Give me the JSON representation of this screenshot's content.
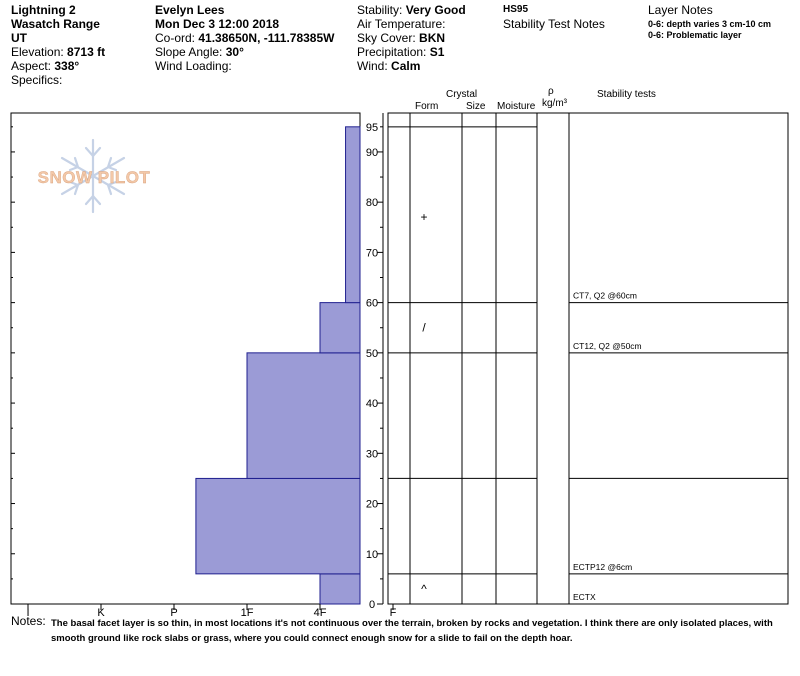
{
  "site": {
    "name": "Lightning 2",
    "range": "Wasatch Range",
    "state": "UT",
    "elevation_label": "Elevation:",
    "elevation": "8713 ft",
    "aspect_label": "Aspect:",
    "aspect": "338°",
    "specifics_label": "Specifics:"
  },
  "observer": {
    "name": "Evelyn Lees",
    "datetime": "Mon Dec 3 12:00 2018",
    "coord_label": "Co-ord:",
    "coord": "41.38650N, -111.78385W",
    "slope_label": "Slope Angle:",
    "slope": "30°",
    "wind_loading_label": "Wind Loading:"
  },
  "conditions": {
    "stability_label": "Stability:",
    "stability": "Very Good",
    "air_temp_label": "Air Temperature:",
    "sky_label": "Sky Cover:",
    "sky": "BKN",
    "precip_label": "Precipitation:",
    "precip": "S1",
    "wind_label": "Wind:",
    "wind": "Calm"
  },
  "hs": {
    "code": "HS95",
    "title": "Stability Test Notes"
  },
  "layer_notes": {
    "title": "Layer Notes",
    "items": [
      "0-6: depth varies 3 cm-10 cm",
      "0-6: Problematic layer"
    ]
  },
  "logo_text": "SNOW PILOT",
  "columns": {
    "crystal": "Crystal",
    "form": "Form",
    "size": "Size",
    "moisture": "Moisture",
    "rho": "ρ",
    "density_unit": "kg/m³",
    "stability_tests": "Stability tests"
  },
  "chart_data": {
    "type": "bar",
    "orientation": "horizontal-step",
    "xlabel": "",
    "ylabel": "",
    "x_categories": [
      "I",
      "K",
      "P",
      "1F",
      "4F",
      "F"
    ],
    "y_ticks": [
      0,
      10,
      20,
      30,
      40,
      50,
      60,
      70,
      80,
      90,
      95
    ],
    "ylim": [
      0,
      97
    ],
    "hand_hardness_layers": [
      {
        "bottom": 0,
        "top": 6,
        "hardness": "F"
      },
      {
        "bottom": 6,
        "top": 25,
        "hardness": "1F+"
      },
      {
        "bottom": 25,
        "top": 50,
        "hardness": "4F+"
      },
      {
        "bottom": 50,
        "top": 60,
        "hardness": "F"
      },
      {
        "bottom": 60,
        "top": 95,
        "hardness": "F-"
      }
    ],
    "hardness_index": [
      {
        "bottom": 0,
        "top": 6,
        "value": 5.0
      },
      {
        "bottom": 6,
        "top": 25,
        "value": 3.3
      },
      {
        "bottom": 25,
        "top": 50,
        "value": 4.0
      },
      {
        "bottom": 50,
        "top": 60,
        "value": 5.0
      },
      {
        "bottom": 60,
        "top": 95,
        "value": 5.35
      }
    ],
    "layer_boundaries": [
      6,
      25,
      50,
      60,
      95
    ],
    "grain_forms": [
      {
        "depth": 77,
        "symbol": "+"
      },
      {
        "depth": 55,
        "symbol": "/"
      },
      {
        "depth": 3,
        "symbol": "^"
      }
    ],
    "stability_tests": [
      {
        "depth": 60,
        "label": "CT7, Q2 @60cm"
      },
      {
        "depth": 50,
        "label": "CT12, Q2 @50cm"
      },
      {
        "depth": 6,
        "label": "ECTP12 @6cm"
      },
      {
        "depth": 0,
        "label": "ECTX"
      }
    ]
  },
  "notes": {
    "label": "Notes:",
    "text": "The basal facet layer is so thin, in most locations it's not continuous over the terrain, broken by rocks and vegetation. I think there are only isolated places, with smooth ground like rock slabs or grass, where you could connect enough snow for a slide to fail on the depth hoar."
  },
  "colors": {
    "bar_fill": "#9b9bd6",
    "bar_stroke": "#1f1f8f",
    "logo": "#f3c8a8",
    "flake": "#c6d2e6"
  }
}
